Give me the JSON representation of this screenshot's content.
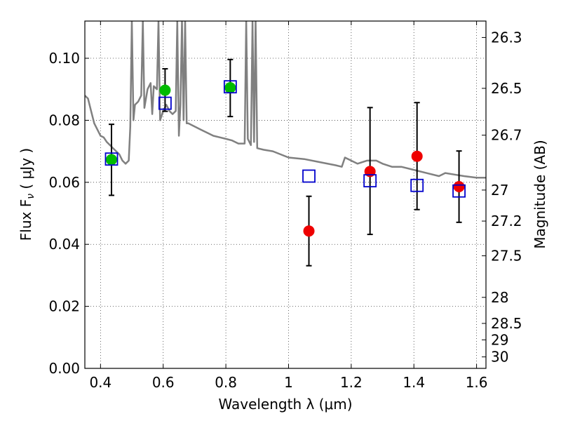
{
  "chart_data": {
    "type": "scatter",
    "xlabel": "Wavelength  λ (μm)",
    "ylabel_left": "Flux  F",
    "ylabel_left_sub": "ν",
    "ylabel_left_unit": "  ( μJy )",
    "ylabel_right": "Magnitude (AB)",
    "xlim": [
      0.35,
      1.63
    ],
    "ylim": [
      0.0,
      0.112
    ],
    "grid": true,
    "x_ticks": [
      0.4,
      0.6,
      0.8,
      1.0,
      1.2,
      1.4,
      1.6
    ],
    "x_tick_labels": [
      "0.4",
      "0.6",
      "0.8",
      "1",
      "1.2",
      "1.4",
      "1.6"
    ],
    "y_ticks": [
      0.0,
      0.02,
      0.04,
      0.06,
      0.08,
      0.1
    ],
    "y_tick_labels": [
      "0.00",
      "0.02",
      "0.04",
      "0.06",
      "0.08",
      "0.10"
    ],
    "mag_ticks": [
      {
        "label": "26.3",
        "flux": 0.1067
      },
      {
        "label": "26.5",
        "flux": 0.0903
      },
      {
        "label": "26.7",
        "flux": 0.0752
      },
      {
        "label": "27",
        "flux": 0.0575
      },
      {
        "label": "27.2",
        "flux": 0.0475
      },
      {
        "label": "27.5",
        "flux": 0.0363
      },
      {
        "label": "28",
        "flux": 0.0229
      },
      {
        "label": "28.5",
        "flux": 0.0145
      },
      {
        "label": "29",
        "flux": 0.0092
      },
      {
        "label": "30",
        "flux": 0.0037
      }
    ],
    "series": [
      {
        "marker": "circle",
        "color": "#00bb00",
        "points": [
          {
            "x": 0.435,
            "y": 0.0673,
            "err_lo": 0.0558,
            "err_hi": 0.0787
          },
          {
            "x": 0.606,
            "y": 0.0897,
            "err_lo": 0.0829,
            "err_hi": 0.0966
          },
          {
            "x": 0.814,
            "y": 0.0905,
            "err_lo": 0.0812,
            "err_hi": 0.0996
          }
        ]
      },
      {
        "marker": "circle",
        "color": "#ee0000",
        "points": [
          {
            "x": 1.065,
            "y": 0.0443,
            "err_lo": 0.0331,
            "err_hi": 0.0555
          },
          {
            "x": 1.26,
            "y": 0.0635,
            "err_lo": 0.0432,
            "err_hi": 0.0841
          },
          {
            "x": 1.41,
            "y": 0.0684,
            "err_lo": 0.0512,
            "err_hi": 0.0857
          },
          {
            "x": 1.544,
            "y": 0.0586,
            "err_lo": 0.0471,
            "err_hi": 0.0701
          }
        ]
      },
      {
        "marker": "open-square",
        "color": "#0000cc",
        "points": [
          {
            "x": 0.435,
            "y": 0.0675
          },
          {
            "x": 0.606,
            "y": 0.0855
          },
          {
            "x": 0.814,
            "y": 0.0908
          },
          {
            "x": 1.065,
            "y": 0.062
          },
          {
            "x": 1.26,
            "y": 0.0605
          },
          {
            "x": 1.41,
            "y": 0.059
          },
          {
            "x": 1.544,
            "y": 0.0572
          }
        ]
      },
      {
        "marker": "line",
        "color": "#808080",
        "points": [
          [
            0.35,
            0.088
          ],
          [
            0.36,
            0.087
          ],
          [
            0.37,
            0.083
          ],
          [
            0.38,
            0.079
          ],
          [
            0.39,
            0.077
          ],
          [
            0.4,
            0.075
          ],
          [
            0.41,
            0.0745
          ],
          [
            0.42,
            0.073
          ],
          [
            0.43,
            0.072
          ],
          [
            0.44,
            0.071
          ],
          [
            0.45,
            0.07
          ],
          [
            0.46,
            0.069
          ],
          [
            0.47,
            0.067
          ],
          [
            0.48,
            0.066
          ],
          [
            0.49,
            0.067
          ],
          [
            0.495,
            0.078
          ],
          [
            0.5,
            0.112
          ],
          [
            0.505,
            0.08
          ],
          [
            0.51,
            0.085
          ],
          [
            0.52,
            0.086
          ],
          [
            0.53,
            0.088
          ],
          [
            0.535,
            0.112
          ],
          [
            0.54,
            0.084
          ],
          [
            0.55,
            0.09
          ],
          [
            0.56,
            0.092
          ],
          [
            0.565,
            0.082
          ],
          [
            0.57,
            0.091
          ],
          [
            0.58,
            0.09
          ],
          [
            0.585,
            0.112
          ],
          [
            0.59,
            0.08
          ],
          [
            0.6,
            0.083
          ],
          [
            0.61,
            0.085
          ],
          [
            0.62,
            0.083
          ],
          [
            0.63,
            0.082
          ],
          [
            0.64,
            0.083
          ],
          [
            0.645,
            0.112
          ],
          [
            0.65,
            0.075
          ],
          [
            0.655,
            0.085
          ],
          [
            0.66,
            0.112
          ],
          [
            0.665,
            0.08
          ],
          [
            0.67,
            0.112
          ],
          [
            0.675,
            0.079
          ],
          [
            0.68,
            0.079
          ],
          [
            0.7,
            0.078
          ],
          [
            0.72,
            0.077
          ],
          [
            0.74,
            0.076
          ],
          [
            0.76,
            0.075
          ],
          [
            0.78,
            0.0745
          ],
          [
            0.8,
            0.074
          ],
          [
            0.82,
            0.0735
          ],
          [
            0.84,
            0.0725
          ],
          [
            0.86,
            0.0725
          ],
          [
            0.865,
            0.112
          ],
          [
            0.87,
            0.074
          ],
          [
            0.88,
            0.072
          ],
          [
            0.885,
            0.112
          ],
          [
            0.89,
            0.073
          ],
          [
            0.895,
            0.112
          ],
          [
            0.9,
            0.071
          ],
          [
            0.92,
            0.0705
          ],
          [
            0.95,
            0.07
          ],
          [
            1.0,
            0.068
          ],
          [
            1.05,
            0.0675
          ],
          [
            1.1,
            0.0665
          ],
          [
            1.15,
            0.0655
          ],
          [
            1.17,
            0.065
          ],
          [
            1.18,
            0.068
          ],
          [
            1.2,
            0.067
          ],
          [
            1.22,
            0.066
          ],
          [
            1.25,
            0.067
          ],
          [
            1.28,
            0.067
          ],
          [
            1.3,
            0.066
          ],
          [
            1.33,
            0.065
          ],
          [
            1.36,
            0.065
          ],
          [
            1.4,
            0.064
          ],
          [
            1.44,
            0.063
          ],
          [
            1.48,
            0.062
          ],
          [
            1.5,
            0.063
          ],
          [
            1.53,
            0.0625
          ],
          [
            1.56,
            0.062
          ],
          [
            1.6,
            0.0615
          ],
          [
            1.63,
            0.0615
          ]
        ]
      }
    ]
  }
}
